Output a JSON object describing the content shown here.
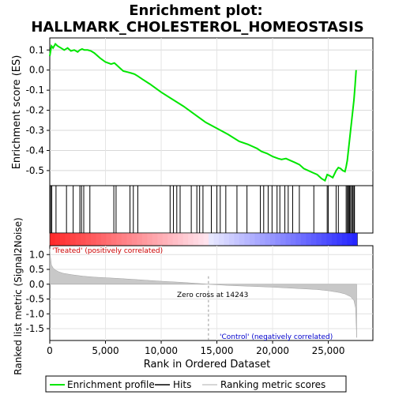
{
  "chart_data": {
    "type": "line",
    "title_line1": "Enrichment plot:",
    "title_line2": "HALLMARK_CHOLESTEROL_HOMEOSTASIS",
    "top_panel": {
      "ylabel": "Enrichment score (ES)",
      "ylim": [
        -0.575,
        0.16
      ],
      "yticks": [
        0.1,
        0.0,
        -0.1,
        -0.2,
        -0.3,
        -0.4,
        -0.5
      ],
      "ytick_labels": [
        "0.1",
        "0.0",
        "-0.1",
        "-0.2",
        "-0.3",
        "-0.4",
        "-0.5"
      ],
      "grid": true,
      "series_color": "#00e600",
      "es_profile": {
        "x": [
          0,
          150,
          300,
          500,
          700,
          1000,
          1300,
          1600,
          1900,
          2200,
          2500,
          2700,
          2900,
          3100,
          3400,
          3700,
          4000,
          4500,
          5000,
          5500,
          5800,
          6000,
          6300,
          6600,
          7000,
          7300,
          7600,
          7900,
          8300,
          9000,
          10000,
          11000,
          12000,
          13000,
          14000,
          15000,
          16000,
          17000,
          17800,
          18200,
          18600,
          19000,
          19500,
          20000,
          20500,
          20800,
          21200,
          21600,
          22000,
          22400,
          22800,
          23200,
          23600,
          24000,
          24400,
          24700,
          24900,
          25100,
          25400,
          25700,
          25900,
          26100,
          26300,
          26500,
          26600,
          26700,
          26800,
          26900,
          27000,
          27100,
          27200,
          27300,
          27400,
          27500
        ],
        "y": [
          0.07,
          0.12,
          0.11,
          0.13,
          0.12,
          0.11,
          0.1,
          0.11,
          0.095,
          0.1,
          0.09,
          0.1,
          0.105,
          0.1,
          0.1,
          0.095,
          0.085,
          0.06,
          0.04,
          0.03,
          0.035,
          0.025,
          0.01,
          -0.005,
          -0.01,
          -0.015,
          -0.02,
          -0.03,
          -0.045,
          -0.07,
          -0.11,
          -0.145,
          -0.18,
          -0.22,
          -0.26,
          -0.29,
          -0.32,
          -0.355,
          -0.37,
          -0.38,
          -0.39,
          -0.405,
          -0.415,
          -0.43,
          -0.44,
          -0.445,
          -0.44,
          -0.45,
          -0.46,
          -0.47,
          -0.49,
          -0.5,
          -0.51,
          -0.52,
          -0.54,
          -0.55,
          -0.52,
          -0.525,
          -0.535,
          -0.5,
          -0.485,
          -0.49,
          -0.5,
          -0.505,
          -0.48,
          -0.45,
          -0.4,
          -0.35,
          -0.3,
          -0.25,
          -0.2,
          -0.15,
          -0.08,
          0.0
        ]
      }
    },
    "hits_panel": {
      "hit_positions": [
        80,
        180,
        560,
        1500,
        2100,
        2700,
        2850,
        3050,
        3600,
        5750,
        5950,
        7200,
        7500,
        7900,
        10800,
        11100,
        11400,
        11700,
        12700,
        13200,
        13450,
        13750,
        14500,
        15000,
        15300,
        15800,
        16800,
        17700,
        18900,
        19200,
        19600,
        19950,
        20400,
        20650,
        21100,
        21400,
        21800,
        22400,
        23700,
        24900,
        25000,
        25700,
        25900,
        26600,
        26700,
        26800,
        26850,
        26900,
        27000,
        27100,
        27200,
        27300,
        27350
      ]
    },
    "bottom_panel": {
      "ylabel": "Ranked list metric (Signal2Noise)",
      "xlabel": "Rank in Ordered Dataset",
      "ylim": [
        -1.9,
        1.3
      ],
      "yticks": [
        1.0,
        0.5,
        0.0,
        -0.5,
        -1.0,
        -1.5
      ],
      "ytick_labels": [
        "1.0",
        "0.5",
        "0.0",
        "-0.5",
        "-1.0",
        "-1.5"
      ],
      "xlim": [
        0,
        29000
      ],
      "xticks": [
        0,
        5000,
        10000,
        15000,
        20000,
        25000
      ],
      "xtick_labels": [
        "0",
        "5,000",
        "10,000",
        "15,000",
        "20,000",
        "25,000"
      ],
      "zero_cross_rank": 14243,
      "zero_cross_label": "Zero cross at 14243",
      "treated_label": "'Treated' (positively correlated)",
      "control_label": "'Control' (negatively correlated)",
      "metric_profile": {
        "x": [
          0,
          50,
          150,
          300,
          500,
          800,
          1200,
          2000,
          3000,
          4000,
          6000,
          8000,
          10000,
          12000,
          14243,
          16000,
          18000,
          20000,
          22000,
          24000,
          25000,
          26000,
          26500,
          27000,
          27300,
          27450,
          27550
        ],
        "y": [
          1.2,
          0.95,
          0.65,
          0.55,
          0.48,
          0.42,
          0.37,
          0.32,
          0.27,
          0.24,
          0.2,
          0.15,
          0.1,
          0.06,
          0.0,
          -0.04,
          -0.07,
          -0.1,
          -0.14,
          -0.18,
          -0.22,
          -0.28,
          -0.33,
          -0.42,
          -0.55,
          -0.8,
          -1.8
        ]
      }
    },
    "legend": {
      "items": [
        {
          "label": "Enrichment profile",
          "color": "#00e600"
        },
        {
          "label": "Hits",
          "color": "#000000"
        },
        {
          "label": "Ranking metric scores",
          "color": "#c8c8c8"
        }
      ]
    },
    "max_rank": 27600
  }
}
